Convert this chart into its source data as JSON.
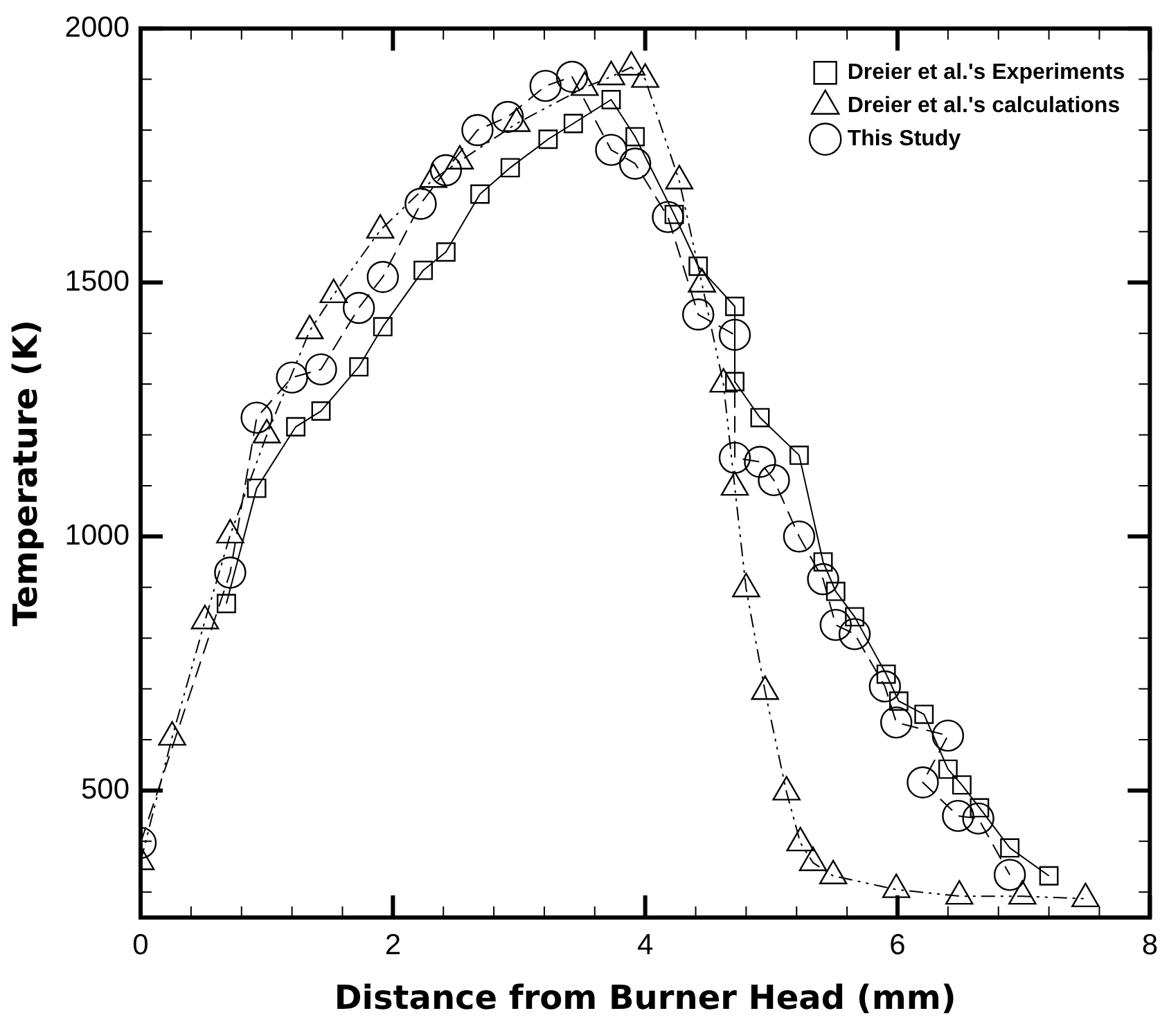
{
  "chart_data": {
    "type": "line",
    "xlabel": "Distance from Burner Head (mm)",
    "ylabel": "Temperature (K)",
    "xlim": [
      0,
      8
    ],
    "ylim": [
      250,
      2000
    ],
    "xticks": [
      0,
      {
        "value": 0.4,
        "label": null
      },
      {
        "value": 0.8,
        "label": null
      },
      {
        "value": 1.2,
        "label": null
      },
      {
        "value": 1.6,
        "label": null
      },
      2,
      {
        "value": 2.4,
        "label": null
      },
      {
        "value": 2.8,
        "label": null
      },
      {
        "value": 3.2,
        "label": null
      },
      {
        "value": 3.6,
        "label": null
      },
      4,
      {
        "value": 4.4,
        "label": null
      },
      {
        "value": 4.8,
        "label": null
      },
      {
        "value": 5.2,
        "label": null
      },
      {
        "value": 5.6,
        "label": null
      },
      6,
      {
        "value": 6.4,
        "label": null
      },
      {
        "value": 6.8,
        "label": null
      },
      {
        "value": 7.2,
        "label": null
      },
      {
        "value": 7.6,
        "label": null
      },
      8
    ],
    "yticks": [
      {
        "value": 300,
        "label": null
      },
      {
        "value": 400,
        "label": null
      },
      500,
      {
        "value": 600,
        "label": null
      },
      {
        "value": 700,
        "label": null
      },
      {
        "value": 800,
        "label": null
      },
      {
        "value": 900,
        "label": null
      },
      1000,
      {
        "value": 1100,
        "label": null
      },
      {
        "value": 1200,
        "label": null
      },
      {
        "value": 1300,
        "label": null
      },
      {
        "value": 1400,
        "label": null
      },
      1500,
      {
        "value": 1600,
        "label": null
      },
      {
        "value": 1700,
        "label": null
      },
      {
        "value": 1800,
        "label": null
      },
      {
        "value": 1900,
        "label": null
      },
      2000
    ],
    "grid": false,
    "legend": "top right",
    "series": [
      {
        "name": "Dreier et al.'s Experiments",
        "color": "#000000",
        "marker": "square",
        "line_style": "solid",
        "x": [
          0.68,
          0.92,
          1.23,
          1.43,
          1.73,
          1.92,
          2.24,
          2.42,
          2.69,
          2.93,
          3.23,
          3.43,
          3.73,
          3.92,
          4.23,
          4.42,
          4.71,
          4.71,
          4.91,
          5.22,
          5.41,
          5.51,
          5.66,
          5.91,
          6.01,
          6.21,
          6.4,
          6.51,
          6.65,
          6.89,
          7.2
        ],
        "values": [
          868,
          1095,
          1216,
          1247,
          1334,
          1413,
          1524,
          1560,
          1674,
          1726,
          1782,
          1813,
          1860,
          1787,
          1634,
          1532,
          1453,
          1305,
          1234,
          1160,
          950,
          892,
          842,
          729,
          676,
          650,
          542,
          511,
          466,
          387,
          332
        ]
      },
      {
        "name": "Dreier et al.'s calculations",
        "color": "#000000",
        "marker": "triangle",
        "line_style": "dotted",
        "x": [
          0,
          0.25,
          0.51,
          0.71,
          1.0,
          1.34,
          1.53,
          1.9,
          2.32,
          2.53,
          2.98,
          3.52,
          3.73,
          3.89,
          4.0,
          4.27,
          4.45,
          4.62,
          4.71,
          4.8,
          4.95,
          5.12,
          5.23,
          5.33,
          5.49,
          5.99,
          6.49,
          6.99,
          7.49
        ],
        "values": [
          360,
          605,
          834,
          1003,
          1200,
          1405,
          1476,
          1603,
          1703,
          1739,
          1813,
          1884,
          1905,
          1924,
          1900,
          1700,
          1497,
          1300,
          1097,
          897,
          695,
          497,
          397,
          358,
          332,
          305,
          292,
          292,
          287
        ]
      },
      {
        "name": "This Study",
        "color": "#000000",
        "marker": "circle",
        "line_style": "dashed",
        "x": [
          0,
          0.71,
          0.92,
          1.2,
          1.43,
          1.73,
          1.92,
          2.22,
          2.42,
          2.67,
          2.91,
          3.21,
          3.42,
          3.73,
          3.92,
          4.18,
          4.42,
          4.71,
          4.71,
          4.91,
          5.02,
          5.22,
          5.41,
          5.51,
          5.66,
          5.9,
          5.99,
          6.4,
          6.2,
          6.48,
          6.64,
          6.89
        ],
        "values": [
          397,
          929,
          1234,
          1313,
          1329,
          1450,
          1511,
          1655,
          1721,
          1800,
          1826,
          1887,
          1905,
          1761,
          1734,
          1629,
          1437,
          1397,
          1155,
          1147,
          1111,
          1000,
          916,
          826,
          808,
          705,
          634,
          608,
          516,
          450,
          445,
          334
        ]
      }
    ]
  }
}
